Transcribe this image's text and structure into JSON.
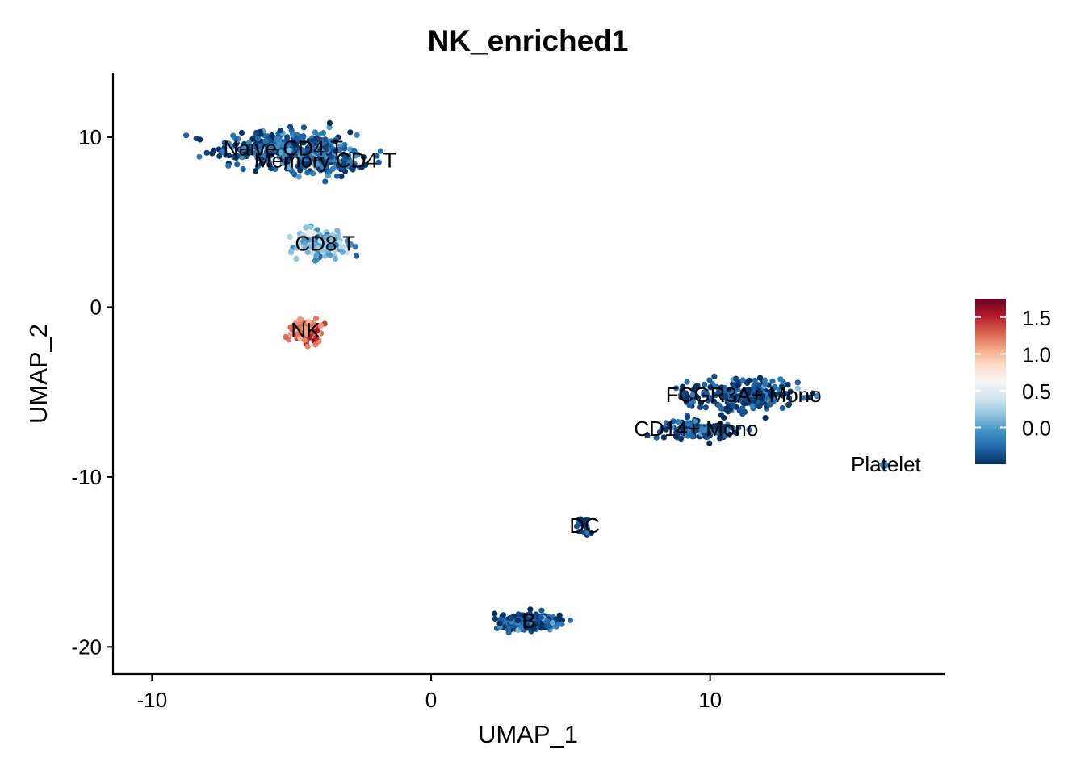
{
  "chart_data": {
    "type": "scatter",
    "title": "NK_enriched1",
    "xlabel": "UMAP_1",
    "ylabel": "UMAP_2",
    "xlim": [
      -11.4,
      18.4
    ],
    "ylim": [
      -21.6,
      13.8
    ],
    "x_ticks": [
      -10,
      0,
      10
    ],
    "y_ticks": [
      -20,
      -10,
      0,
      10
    ],
    "x_tick_labels": [
      "-10",
      "0",
      "10"
    ],
    "y_tick_labels": [
      "-20",
      "-10",
      "0",
      "10"
    ],
    "grid": false,
    "legend": {
      "placement": "right",
      "type": "colorbar",
      "range": [
        -0.5,
        1.75
      ],
      "ticks": [
        0.0,
        0.5,
        1.0,
        1.5
      ],
      "tick_labels": [
        "0.0",
        "0.5",
        "1.0",
        "1.5"
      ],
      "colors": [
        "#053061",
        "#2166ac",
        "#4393c3",
        "#92c5de",
        "#d1e5f0",
        "#f7f7f7",
        "#fddbc7",
        "#f4a582",
        "#d6604d",
        "#b2182b",
        "#67001f"
      ]
    },
    "clusters": [
      {
        "label": "Naive CD4 T",
        "center": [
          -5.3,
          9.3
        ],
        "spread": [
          2.2,
          1.0
        ],
        "value": -0.35,
        "n": 330
      },
      {
        "label": "Memory CD4 T",
        "center": [
          -3.8,
          8.6
        ],
        "spread": [
          1.2,
          0.8
        ],
        "value": -0.3,
        "n": 140
      },
      {
        "label": "CD8 T",
        "center": [
          -3.8,
          3.7
        ],
        "spread": [
          0.9,
          0.8
        ],
        "value": 0.1,
        "n": 140
      },
      {
        "label": "NK",
        "center": [
          -4.5,
          -1.4
        ],
        "spread": [
          0.6,
          0.6
        ],
        "value": 1.25,
        "n": 130
      },
      {
        "label": "FCGR3A+ Mono",
        "center": [
          11.2,
          -5.2
        ],
        "spread": [
          1.8,
          0.9
        ],
        "value": -0.4,
        "n": 260
      },
      {
        "label": "CD14+ Mono",
        "center": [
          9.5,
          -7.2
        ],
        "spread": [
          1.2,
          0.5
        ],
        "value": -0.4,
        "n": 130
      },
      {
        "label": "Platelet",
        "center": [
          16.3,
          -9.3
        ],
        "spread": [
          0.1,
          0.1
        ],
        "value": -0.05,
        "n": 6
      },
      {
        "label": "DC",
        "center": [
          5.5,
          -12.9
        ],
        "spread": [
          0.3,
          0.3
        ],
        "value": -0.4,
        "n": 20
      },
      {
        "label": "B",
        "center": [
          3.5,
          -18.5
        ],
        "spread": [
          1.1,
          0.45
        ],
        "value": -0.4,
        "n": 240
      }
    ]
  }
}
